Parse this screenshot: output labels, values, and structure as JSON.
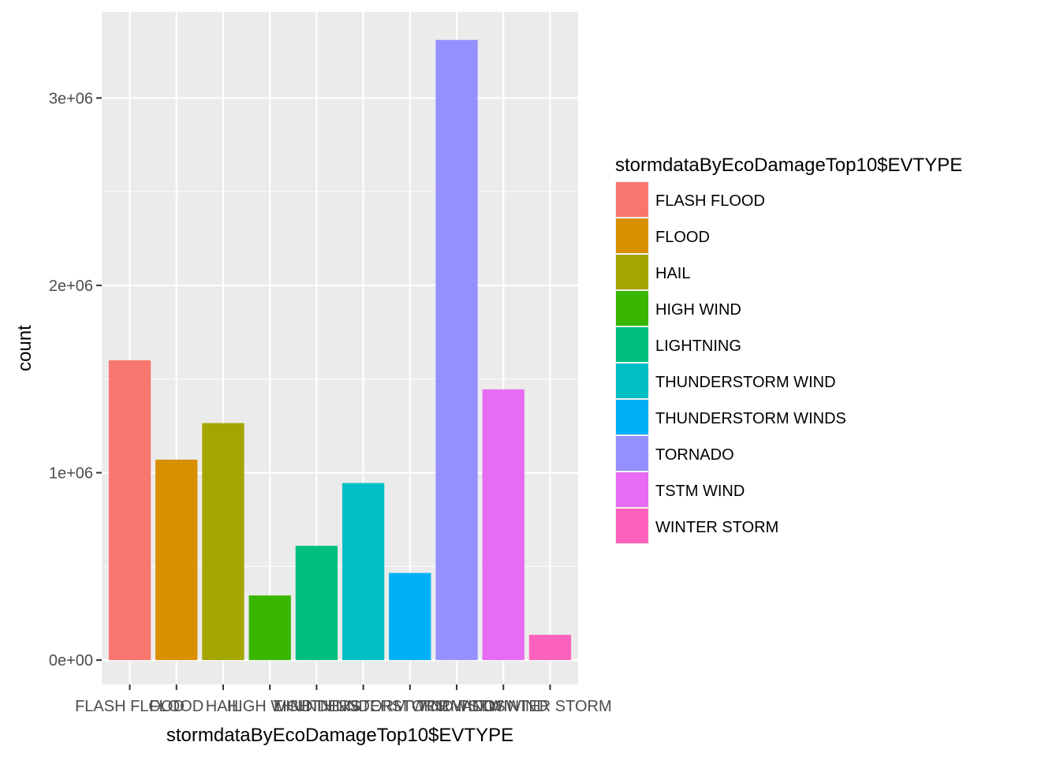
{
  "chart_data": {
    "type": "bar",
    "xlabel": "stormdataByEcoDamageTop10$EVTYPE",
    "ylabel": "count",
    "ylim": [
      -130000,
      3460000
    ],
    "y_ticks": [
      0,
      1000000,
      2000000,
      3000000
    ],
    "y_tick_labels": [
      "0e+00",
      "1e+06",
      "2e+06",
      "3e+06"
    ],
    "grid": true,
    "legend_title": "stormdataByEcoDamageTop10$EVTYPE",
    "legend_position": "right",
    "categories": [
      "FLASH FLOOD",
      "FLOOD",
      "HAIL",
      "HIGH WIND",
      "LIGHTNING",
      "THUNDERSTORM WIND",
      "THUNDERSTORM WINDS",
      "TORNADO",
      "TSTM WIND",
      "WINTER STORM"
    ],
    "values": [
      1600000,
      1070000,
      1265000,
      345000,
      610000,
      945000,
      465000,
      3310000,
      1445000,
      135000
    ],
    "colors": [
      "#F8766D",
      "#D89000",
      "#A3A500",
      "#39B600",
      "#00BF7D",
      "#00BFC4",
      "#00B0F6",
      "#9590FF",
      "#E76BF3",
      "#FF62BC"
    ]
  },
  "theme": {
    "panel_background": "#EBEBEB",
    "grid_color": "#FFFFFF"
  }
}
